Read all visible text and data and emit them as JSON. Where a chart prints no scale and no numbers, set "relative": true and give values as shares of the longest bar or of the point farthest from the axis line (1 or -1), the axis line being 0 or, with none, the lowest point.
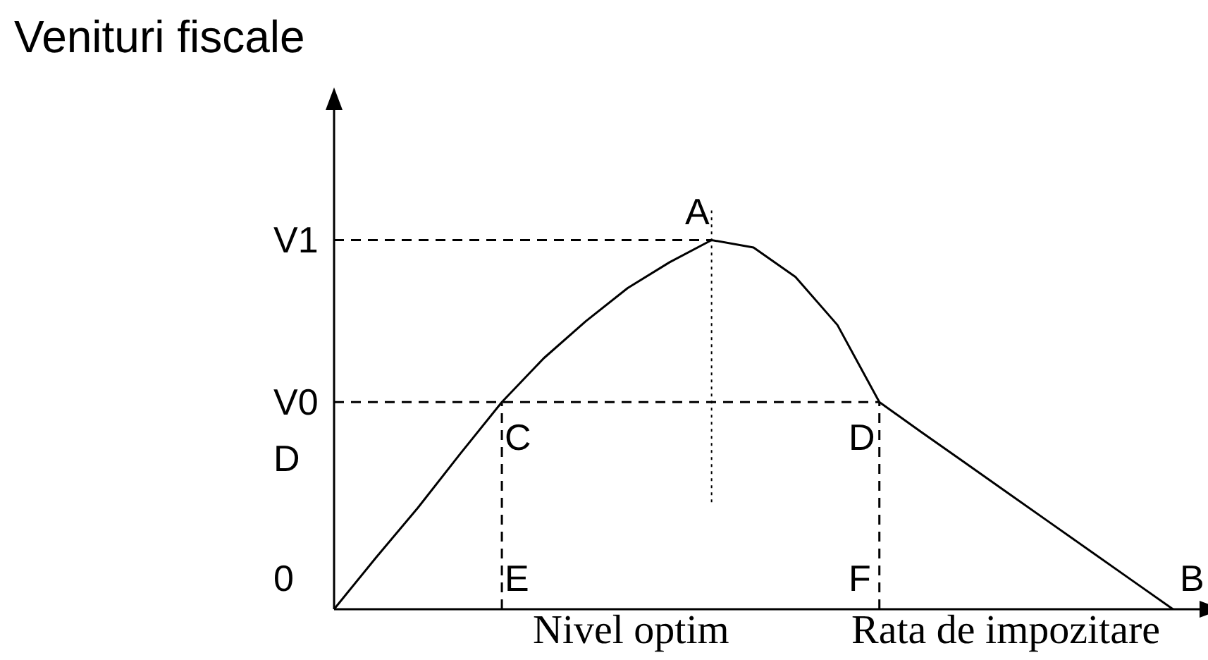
{
  "chart_data": {
    "type": "line",
    "relative": true,
    "ylabel": "Venituri fiscale",
    "xlabel": "Rata de impozitare",
    "categories": [
      null,
      null,
      null,
      null,
      null,
      null,
      null,
      null,
      null,
      null,
      null,
      null,
      null,
      null,
      null,
      null,
      null,
      null,
      null,
      null,
      null
    ],
    "marker": "none",
    "series": [
      {
        "color": "#000000",
        "line_style": "solid",
        "values": [
          0,
          0.14,
          0.275,
          0.42,
          0.561,
          0.68,
          0.78,
          0.87,
          0.94,
          1,
          0.98,
          0.9,
          0.77,
          0.561,
          0.48,
          0.4,
          0.32,
          0.24,
          0.16,
          0.08,
          0
        ]
      }
    ],
    "ref_lines": [
      {
        "axis": "y",
        "value": 1,
        "label": "V1",
        "line_style": "dashed",
        "color": "#000000"
      },
      {
        "axis": "y",
        "value": 0.561,
        "label": "V0",
        "line_style": "dashed",
        "color": "#000000"
      }
    ],
    "annotations": [
      "D",
      "0",
      "A",
      "C",
      "D",
      "E",
      "F",
      "B",
      "Nivel optim"
    ]
  }
}
